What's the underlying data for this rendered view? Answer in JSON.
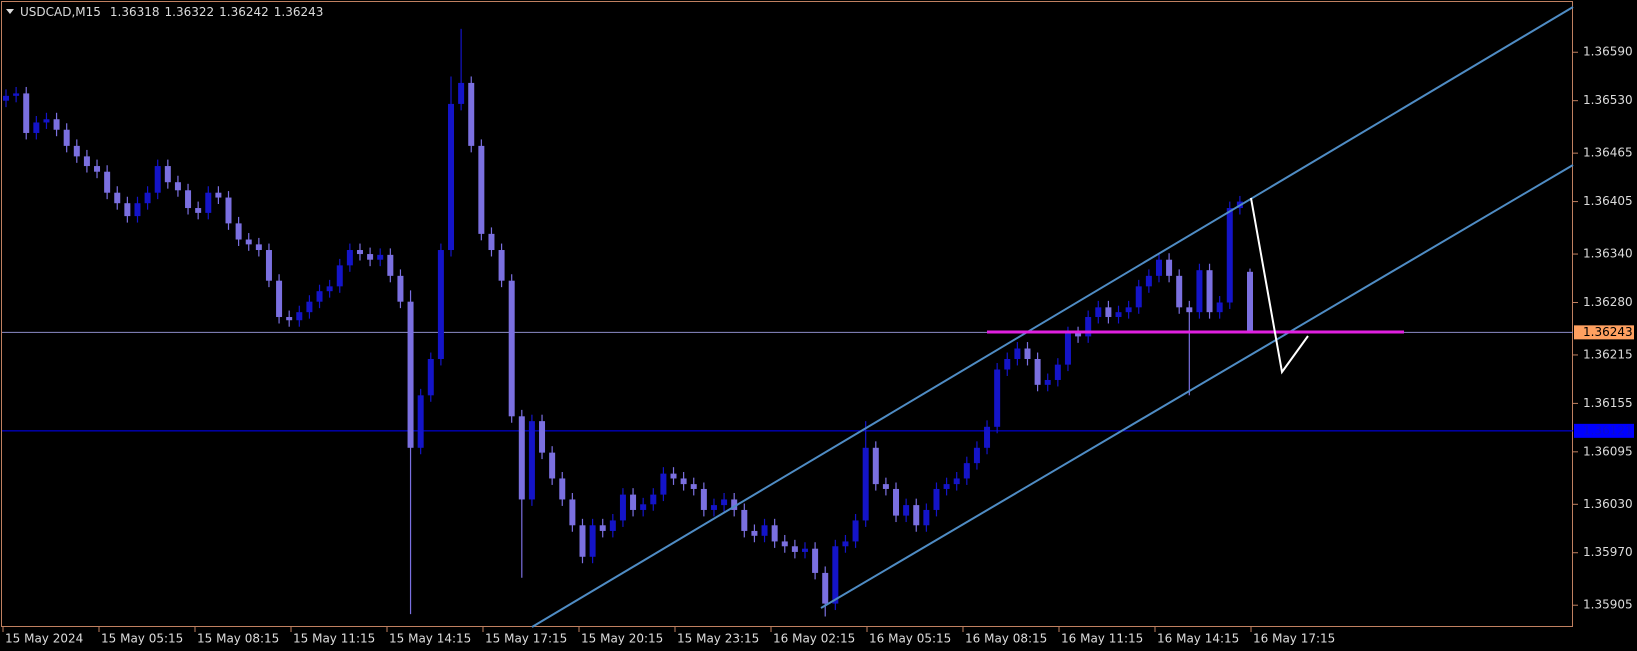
{
  "chart_data": {
    "type": "candlestick",
    "symbol": "USDCAD,M15",
    "up_color": "#1414c8",
    "down_color": "#7b70e0",
    "bid_color": "#ffa060",
    "bid_line_color": "#8c8cc8",
    "levels": [
      {
        "price": 1.36121,
        "color": "#0000ff"
      }
    ],
    "ylim": [
      1.35878,
      1.36651
    ],
    "yticks": [
      {
        "value": 1.3659,
        "label": "1.36590"
      },
      {
        "value": 1.3653,
        "label": "1.36530"
      },
      1.36465,
      1.36405,
      {
        "value": 1.3634,
        "label": "1.36340"
      },
      {
        "value": 1.3628,
        "label": "1.36280"
      },
      1.36215,
      1.36155,
      1.36095,
      {
        "value": 1.3603,
        "label": "1.36030"
      },
      {
        "value": 1.3597,
        "label": "1.35970"
      },
      1.35905
    ],
    "time_labels": [
      "15 May 2024",
      "15 May 05:15",
      "15 May 08:15",
      "15 May 11:15",
      "15 May 14:15",
      "15 May 17:15",
      "15 May 20:15",
      "15 May 23:15",
      "16 May 02:15",
      "16 May 05:15",
      "16 May 08:15",
      "16 May 11:15",
      "16 May 14:15",
      "16 May 17:15"
    ],
    "open": [
      1.3653,
      1.36536,
      1.36539,
      1.3649,
      1.36503,
      1.36507,
      1.36494,
      1.36474,
      1.36461,
      1.36449,
      1.36442,
      1.36416,
      1.36403,
      1.36387,
      1.36403,
      1.36416,
      1.36449,
      1.36429,
      1.36419,
      1.36397,
      1.36391,
      1.36416,
      1.3641,
      1.36378,
      1.36358,
      1.36352,
      1.36345,
      1.36307,
      1.36262,
      1.36258,
      1.36268,
      1.36281,
      1.36294,
      1.363,
      1.36326,
      1.36345,
      1.3634,
      1.36333,
      1.36339,
      1.36313,
      1.36281,
      1.361,
      1.36165,
      1.3621,
      1.36345,
      1.36526,
      1.36552,
      1.36474,
      1.36365,
      1.36345,
      1.36307,
      1.36139,
      1.36036,
      1.36133,
      1.36094,
      1.36062,
      1.36036,
      1.36004,
      1.35965,
      1.36004,
      1.35997,
      1.3601,
      1.36042,
      1.36023,
      1.3603,
      1.36042,
      1.36068,
      1.36062,
      1.36055,
      1.36049,
      1.36023,
      1.36029,
      1.36036,
      1.36023,
      1.35997,
      1.35991,
      1.36004,
      1.35984,
      1.35978,
      1.35971,
      1.35975,
      1.35945,
      1.35907,
      1.35978,
      1.35984,
      1.3601,
      1.361,
      1.36055,
      1.36049,
      1.36016,
      1.36029,
      1.36004,
      1.36023,
      1.36049,
      1.36055,
      1.36062,
      1.36081,
      1.361,
      1.36126,
      1.36197,
      1.3621,
      1.36223,
      1.3621,
      1.36178,
      1.36184,
      1.36203,
      1.36242,
      1.36238,
      1.36262,
      1.36274,
      1.36262,
      1.36268,
      1.36274,
      1.363,
      1.36313,
      1.36333,
      1.36313,
      1.36274,
      1.36268,
      1.3632,
      1.36268,
      1.3628,
      1.36397,
      1.36318
    ],
    "high": [
      1.36544,
      1.36547,
      1.36547,
      1.36511,
      1.36515,
      1.36515,
      1.36502,
      1.36482,
      1.36469,
      1.36457,
      1.3645,
      1.36424,
      1.36411,
      1.36411,
      1.36424,
      1.36457,
      1.36457,
      1.36437,
      1.36427,
      1.36405,
      1.36424,
      1.36424,
      1.36418,
      1.36386,
      1.36366,
      1.3636,
      1.36353,
      1.36315,
      1.3627,
      1.36276,
      1.36289,
      1.36302,
      1.36308,
      1.36334,
      1.36353,
      1.36353,
      1.36348,
      1.36347,
      1.36347,
      1.36321,
      1.36295,
      1.36173,
      1.36218,
      1.36353,
      1.3656,
      1.36619,
      1.3656,
      1.36482,
      1.36373,
      1.36353,
      1.36315,
      1.36147,
      1.36141,
      1.36141,
      1.36102,
      1.3607,
      1.36044,
      1.36012,
      1.36012,
      1.36012,
      1.36018,
      1.3605,
      1.3605,
      1.36038,
      1.3605,
      1.36076,
      1.36076,
      1.3607,
      1.36063,
      1.36057,
      1.36037,
      1.36044,
      1.36044,
      1.36031,
      1.36005,
      1.36012,
      1.36012,
      1.35992,
      1.35986,
      1.35983,
      1.35983,
      1.35953,
      1.35986,
      1.35992,
      1.36018,
      1.36133,
      1.36108,
      1.36063,
      1.36057,
      1.36037,
      1.36037,
      1.36031,
      1.36057,
      1.36063,
      1.3607,
      1.36089,
      1.36108,
      1.36134,
      1.36205,
      1.36218,
      1.36231,
      1.36231,
      1.36218,
      1.36192,
      1.36211,
      1.3625,
      1.3625,
      1.3627,
      1.36282,
      1.36282,
      1.36276,
      1.36282,
      1.36308,
      1.36321,
      1.36341,
      1.36341,
      1.36321,
      1.36282,
      1.36328,
      1.36328,
      1.36288,
      1.36405,
      1.36412,
      1.36322
    ],
    "low": [
      1.36522,
      1.36528,
      1.36482,
      1.36482,
      1.36495,
      1.36486,
      1.36466,
      1.36453,
      1.36441,
      1.36434,
      1.36408,
      1.36395,
      1.36379,
      1.36379,
      1.36395,
      1.36408,
      1.36421,
      1.36411,
      1.36389,
      1.36383,
      1.36383,
      1.36402,
      1.3637,
      1.3635,
      1.36344,
      1.36337,
      1.36299,
      1.36254,
      1.3625,
      1.3625,
      1.3626,
      1.36273,
      1.36286,
      1.36292,
      1.36318,
      1.36332,
      1.36325,
      1.36325,
      1.36305,
      1.36273,
      1.35894,
      1.36092,
      1.36157,
      1.36202,
      1.36337,
      1.36518,
      1.36466,
      1.36357,
      1.36337,
      1.36299,
      1.36131,
      1.35939,
      1.36028,
      1.36086,
      1.36054,
      1.36028,
      1.35996,
      1.35957,
      1.35957,
      1.35989,
      1.35989,
      1.36002,
      1.36015,
      1.36015,
      1.36022,
      1.36034,
      1.36054,
      1.36047,
      1.36041,
      1.36015,
      1.36015,
      1.36021,
      1.36015,
      1.35989,
      1.35983,
      1.35983,
      1.35976,
      1.3597,
      1.35963,
      1.35963,
      1.35937,
      1.35891,
      1.35899,
      1.3597,
      1.35976,
      1.36002,
      1.36047,
      1.36041,
      1.36008,
      1.36008,
      1.35996,
      1.35996,
      1.36015,
      1.36041,
      1.36047,
      1.36054,
      1.36073,
      1.36092,
      1.36118,
      1.36189,
      1.36202,
      1.36202,
      1.3617,
      1.3617,
      1.36176,
      1.36195,
      1.3623,
      1.3623,
      1.36254,
      1.36254,
      1.36254,
      1.3626,
      1.36266,
      1.36292,
      1.36305,
      1.36305,
      1.36266,
      1.36165,
      1.3626,
      1.3626,
      1.3626,
      1.36272,
      1.36389,
      1.36242
    ],
    "close": [
      1.36536,
      1.36539,
      1.3649,
      1.36503,
      1.36507,
      1.36494,
      1.36474,
      1.36461,
      1.36449,
      1.36442,
      1.36416,
      1.36403,
      1.36387,
      1.36403,
      1.36416,
      1.36449,
      1.36429,
      1.36419,
      1.36397,
      1.36391,
      1.36416,
      1.3641,
      1.36378,
      1.36358,
      1.36352,
      1.36345,
      1.36307,
      1.36262,
      1.36258,
      1.36268,
      1.36281,
      1.36294,
      1.363,
      1.36326,
      1.36345,
      1.3634,
      1.36333,
      1.36339,
      1.36313,
      1.36281,
      1.361,
      1.36165,
      1.3621,
      1.36345,
      1.36526,
      1.36552,
      1.36474,
      1.36365,
      1.36345,
      1.36307,
      1.36139,
      1.36036,
      1.36133,
      1.36094,
      1.36062,
      1.36036,
      1.36004,
      1.35965,
      1.36004,
      1.35997,
      1.3601,
      1.36042,
      1.36023,
      1.3603,
      1.36042,
      1.36068,
      1.36062,
      1.36055,
      1.36049,
      1.36023,
      1.36029,
      1.36036,
      1.36023,
      1.35997,
      1.35991,
      1.36004,
      1.35984,
      1.35978,
      1.35971,
      1.35975,
      1.35945,
      1.35907,
      1.35978,
      1.35984,
      1.3601,
      1.361,
      1.36055,
      1.36049,
      1.36016,
      1.36029,
      1.36004,
      1.36023,
      1.36049,
      1.36055,
      1.36062,
      1.36081,
      1.361,
      1.36126,
      1.36197,
      1.3621,
      1.36223,
      1.3621,
      1.36178,
      1.36184,
      1.36203,
      1.36242,
      1.36238,
      1.36262,
      1.36274,
      1.36262,
      1.36268,
      1.36274,
      1.363,
      1.36313,
      1.36333,
      1.36313,
      1.36274,
      1.36268,
      1.3632,
      1.36268,
      1.3628,
      1.36397,
      1.36405,
      1.36243
    ]
  }
}
